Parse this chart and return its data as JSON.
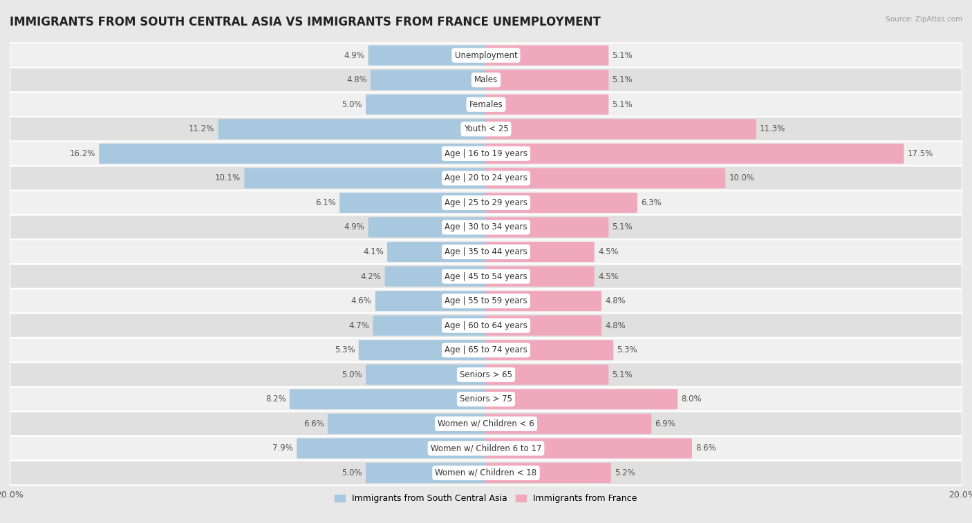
{
  "title": "IMMIGRANTS FROM SOUTH CENTRAL ASIA VS IMMIGRANTS FROM FRANCE UNEMPLOYMENT",
  "source": "Source: ZipAtlas.com",
  "categories": [
    "Unemployment",
    "Males",
    "Females",
    "Youth < 25",
    "Age | 16 to 19 years",
    "Age | 20 to 24 years",
    "Age | 25 to 29 years",
    "Age | 30 to 34 years",
    "Age | 35 to 44 years",
    "Age | 45 to 54 years",
    "Age | 55 to 59 years",
    "Age | 60 to 64 years",
    "Age | 65 to 74 years",
    "Seniors > 65",
    "Seniors > 75",
    "Women w/ Children < 6",
    "Women w/ Children 6 to 17",
    "Women w/ Children < 18"
  ],
  "left_values": [
    4.9,
    4.8,
    5.0,
    11.2,
    16.2,
    10.1,
    6.1,
    4.9,
    4.1,
    4.2,
    4.6,
    4.7,
    5.3,
    5.0,
    8.2,
    6.6,
    7.9,
    5.0
  ],
  "right_values": [
    5.1,
    5.1,
    5.1,
    11.3,
    17.5,
    10.0,
    6.3,
    5.1,
    4.5,
    4.5,
    4.8,
    4.8,
    5.3,
    5.1,
    8.0,
    6.9,
    8.6,
    5.2
  ],
  "left_color": "#a8c8e0",
  "right_color": "#f0a8bc",
  "axis_max": 20.0,
  "legend_left": "Immigrants from South Central Asia",
  "legend_right": "Immigrants from France",
  "bg_color": "#e8e8e8",
  "row_bg_even": "#f0f0f0",
  "row_bg_odd": "#e0e0e0",
  "bar_height": 0.72,
  "title_fontsize": 12,
  "label_fontsize": 8.5,
  "value_fontsize": 8.5
}
